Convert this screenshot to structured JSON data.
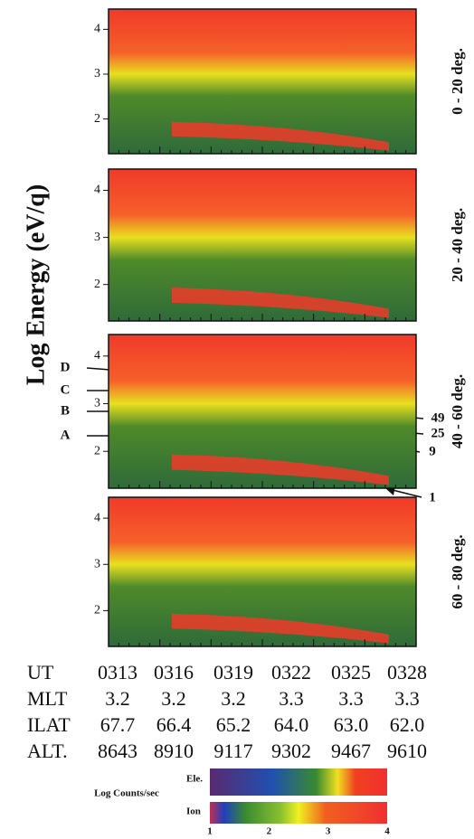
{
  "y_axis_label": "Log Energy (eV/q)",
  "panels": [
    {
      "label": "0 - 20 deg.",
      "yticks": [
        "4",
        "3",
        "2"
      ]
    },
    {
      "label": "20 - 40 deg.",
      "yticks": [
        "4",
        "3",
        "2"
      ]
    },
    {
      "label": "40 - 60 deg.",
      "yticks": [
        "4",
        "3",
        "2"
      ]
    },
    {
      "label": "60 - 80 deg.",
      "yticks": [
        "4",
        "3",
        "2"
      ]
    }
  ],
  "annotations": {
    "letters": [
      "D",
      "C",
      "B",
      "A"
    ],
    "numbers": [
      "49",
      "25",
      "9",
      "1"
    ]
  },
  "time_table": {
    "rows": [
      {
        "label": "UT",
        "values": [
          "0313",
          "0316",
          "0319",
          "0322",
          "0325",
          "0328"
        ]
      },
      {
        "label": "MLT",
        "values": [
          "3.2",
          "3.2",
          "3.2",
          "3.3",
          "3.3",
          "3.3"
        ]
      },
      {
        "label": "ILAT",
        "values": [
          "67.7",
          "66.4",
          "65.2",
          "64.0",
          "63.0",
          "62.0"
        ]
      },
      {
        "label": "ALT.",
        "values": [
          "8643",
          "8910",
          "9117",
          "9302",
          "9467",
          "9610"
        ]
      }
    ]
  },
  "colorbar": {
    "title": "Log Counts/sec",
    "rows": [
      "Ele.",
      "Ion"
    ],
    "ticks": [
      "1",
      "2",
      "3",
      "4"
    ]
  }
}
